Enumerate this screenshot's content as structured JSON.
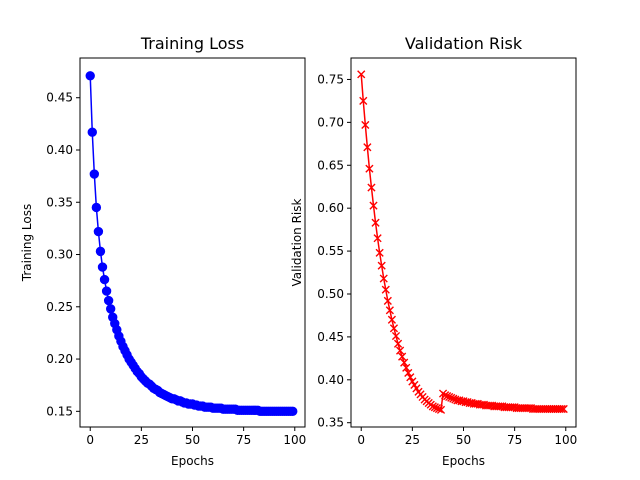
{
  "chart_data": [
    {
      "type": "line",
      "title": "Training Loss",
      "xlabel": "Epochs",
      "ylabel": "Training Loss",
      "xlim": [
        -5,
        105
      ],
      "ylim": [
        0.135,
        0.488
      ],
      "xticks": [
        0,
        25,
        50,
        75,
        100
      ],
      "xtick_labels": [
        "0",
        "25",
        "50",
        "75",
        "100"
      ],
      "yticks": [
        0.15,
        0.2,
        0.25,
        0.3,
        0.35,
        0.4,
        0.45
      ],
      "ytick_labels": [
        "0.15",
        "0.20",
        "0.25",
        "0.30",
        "0.35",
        "0.40",
        "0.45"
      ],
      "grid": false,
      "color": "#0000ff",
      "marker": "circle",
      "series": [
        {
          "x": [
            0,
            1,
            2,
            3,
            4,
            5,
            6,
            7,
            8,
            9,
            10,
            11,
            12,
            13,
            14,
            15,
            16,
            17,
            18,
            19,
            20,
            21,
            22,
            23,
            24,
            25,
            26,
            27,
            28,
            29,
            30,
            31,
            32,
            33,
            34,
            35,
            36,
            37,
            38,
            39,
            40,
            41,
            42,
            43,
            44,
            45,
            46,
            47,
            48,
            49,
            50,
            51,
            52,
            53,
            54,
            55,
            56,
            57,
            58,
            59,
            60,
            61,
            62,
            63,
            64,
            65,
            66,
            67,
            68,
            69,
            70,
            71,
            72,
            73,
            74,
            75,
            76,
            77,
            78,
            79,
            80,
            81,
            82,
            83,
            84,
            85,
            86,
            87,
            88,
            89,
            90,
            91,
            92,
            93,
            94,
            95,
            96,
            97,
            98,
            99
          ],
          "values": [
            0.471,
            0.417,
            0.377,
            0.345,
            0.322,
            0.303,
            0.288,
            0.276,
            0.265,
            0.256,
            0.248,
            0.24,
            0.234,
            0.228,
            0.222,
            0.217,
            0.212,
            0.208,
            0.204,
            0.2,
            0.197,
            0.194,
            0.191,
            0.188,
            0.186,
            0.183,
            0.181,
            0.179,
            0.177,
            0.176,
            0.174,
            0.172,
            0.171,
            0.17,
            0.168,
            0.167,
            0.166,
            0.165,
            0.164,
            0.163,
            0.162,
            0.162,
            0.161,
            0.16,
            0.16,
            0.159,
            0.158,
            0.158,
            0.157,
            0.157,
            0.157,
            0.156,
            0.156,
            0.155,
            0.155,
            0.155,
            0.154,
            0.154,
            0.154,
            0.154,
            0.153,
            0.153,
            0.153,
            0.153,
            0.153,
            0.152,
            0.152,
            0.152,
            0.152,
            0.152,
            0.152,
            0.152,
            0.151,
            0.151,
            0.151,
            0.151,
            0.151,
            0.151,
            0.151,
            0.151,
            0.151,
            0.151,
            0.151,
            0.15,
            0.15,
            0.15,
            0.15,
            0.15,
            0.15,
            0.15,
            0.15,
            0.15,
            0.15,
            0.15,
            0.15,
            0.15,
            0.15,
            0.15,
            0.15,
            0.15
          ]
        }
      ]
    },
    {
      "type": "line",
      "title": "Validation Risk",
      "xlabel": "Epochs",
      "ylabel": "Validation Risk",
      "xlim": [
        -5,
        105
      ],
      "ylim": [
        0.345,
        0.775
      ],
      "xticks": [
        0,
        25,
        50,
        75,
        100
      ],
      "xtick_labels": [
        "0",
        "25",
        "50",
        "75",
        "100"
      ],
      "yticks": [
        0.35,
        0.4,
        0.45,
        0.5,
        0.55,
        0.6,
        0.65,
        0.7,
        0.75
      ],
      "ytick_labels": [
        "0.35",
        "0.40",
        "0.45",
        "0.50",
        "0.55",
        "0.60",
        "0.65",
        "0.70",
        "0.75"
      ],
      "grid": false,
      "color": "#ff0000",
      "marker": "x",
      "series": [
        {
          "x": [
            0,
            1,
            2,
            3,
            4,
            5,
            6,
            7,
            8,
            9,
            10,
            11,
            12,
            13,
            14,
            15,
            16,
            17,
            18,
            19,
            20,
            21,
            22,
            23,
            24,
            25,
            26,
            27,
            28,
            29,
            30,
            31,
            32,
            33,
            34,
            35,
            36,
            37,
            38,
            39,
            40,
            41,
            42,
            43,
            44,
            45,
            46,
            47,
            48,
            49,
            50,
            51,
            52,
            53,
            54,
            55,
            56,
            57,
            58,
            59,
            60,
            61,
            62,
            63,
            64,
            65,
            66,
            67,
            68,
            69,
            70,
            71,
            72,
            73,
            74,
            75,
            76,
            77,
            78,
            79,
            80,
            81,
            82,
            83,
            84,
            85,
            86,
            87,
            88,
            89,
            90,
            91,
            92,
            93,
            94,
            95,
            96,
            97,
            98,
            99
          ],
          "values": [
            0.756,
            0.725,
            0.697,
            0.671,
            0.646,
            0.624,
            0.603,
            0.583,
            0.565,
            0.548,
            0.533,
            0.518,
            0.505,
            0.492,
            0.481,
            0.47,
            0.46,
            0.451,
            0.442,
            0.434,
            0.427,
            0.42,
            0.414,
            0.408,
            0.403,
            0.398,
            0.394,
            0.39,
            0.386,
            0.383,
            0.38,
            0.377,
            0.375,
            0.373,
            0.371,
            0.369,
            0.368,
            0.367,
            0.366,
            0.365,
            0.384,
            0.382,
            0.381,
            0.38,
            0.379,
            0.378,
            0.377,
            0.376,
            0.376,
            0.375,
            0.375,
            0.374,
            0.374,
            0.373,
            0.373,
            0.372,
            0.372,
            0.372,
            0.371,
            0.371,
            0.371,
            0.37,
            0.37,
            0.37,
            0.37,
            0.369,
            0.369,
            0.369,
            0.369,
            0.369,
            0.368,
            0.368,
            0.368,
            0.368,
            0.368,
            0.368,
            0.367,
            0.367,
            0.367,
            0.367,
            0.367,
            0.367,
            0.367,
            0.367,
            0.366,
            0.366,
            0.366,
            0.366,
            0.366,
            0.366,
            0.366,
            0.366,
            0.366,
            0.366,
            0.366,
            0.366,
            0.366,
            0.366,
            0.366,
            0.366
          ]
        }
      ]
    }
  ]
}
